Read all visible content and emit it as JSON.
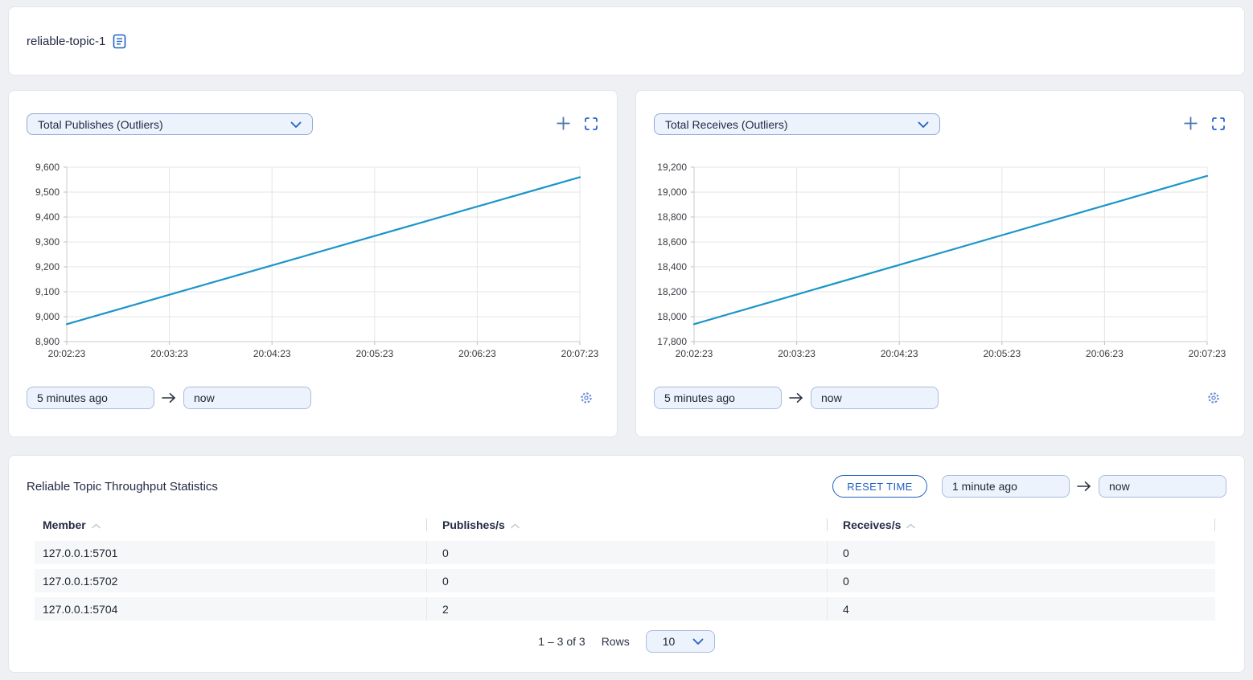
{
  "page": {
    "title": "reliable-topic-1"
  },
  "colors": {
    "accent": "#2160c4",
    "line": "#1b95c8",
    "page_background": "#eef0f3",
    "input_background": "#edf3fc"
  },
  "charts": [
    {
      "from_value": "5 minutes ago",
      "to_value": "now"
    },
    {
      "from_value": "5 minutes ago",
      "to_value": "now"
    }
  ],
  "chart_data": [
    {
      "type": "line",
      "title": "Total Publishes (Outliers)",
      "x": [
        "20:02:23",
        "20:03:23",
        "20:04:23",
        "20:05:23",
        "20:06:23",
        "20:07:23"
      ],
      "values": [
        8970,
        9088,
        9206,
        9324,
        9442,
        9560
      ],
      "ylim": [
        8900,
        9600
      ],
      "y_step": 100,
      "xlabel": "",
      "ylabel": "",
      "grid": true,
      "legend": "none",
      "line_color": "#1b95c8"
    },
    {
      "type": "line",
      "title": "Total Receives (Outliers)",
      "x": [
        "20:02:23",
        "20:03:23",
        "20:04:23",
        "20:05:23",
        "20:06:23",
        "20:07:23"
      ],
      "values": [
        17940,
        18178,
        18416,
        18654,
        18892,
        19130
      ],
      "ylim": [
        17800,
        19200
      ],
      "y_step": 200,
      "xlabel": "",
      "ylabel": "",
      "grid": true,
      "legend": "none",
      "line_color": "#1b95c8"
    }
  ],
  "stats": {
    "title": "Reliable Topic Throughput Statistics",
    "reset_button": "RESET TIME",
    "from_value": "1 minute ago",
    "to_value": "now",
    "columns": [
      "Member",
      "Publishes/s",
      "Receives/s"
    ],
    "rows": [
      [
        "127.0.0.1:5701",
        "0",
        "0"
      ],
      [
        "127.0.0.1:5702",
        "0",
        "0"
      ],
      [
        "127.0.0.1:5704",
        "2",
        "4"
      ]
    ],
    "pagination": {
      "range": "1 – 3 of 3",
      "rows_label": "Rows",
      "rows_per_page": "10"
    }
  }
}
